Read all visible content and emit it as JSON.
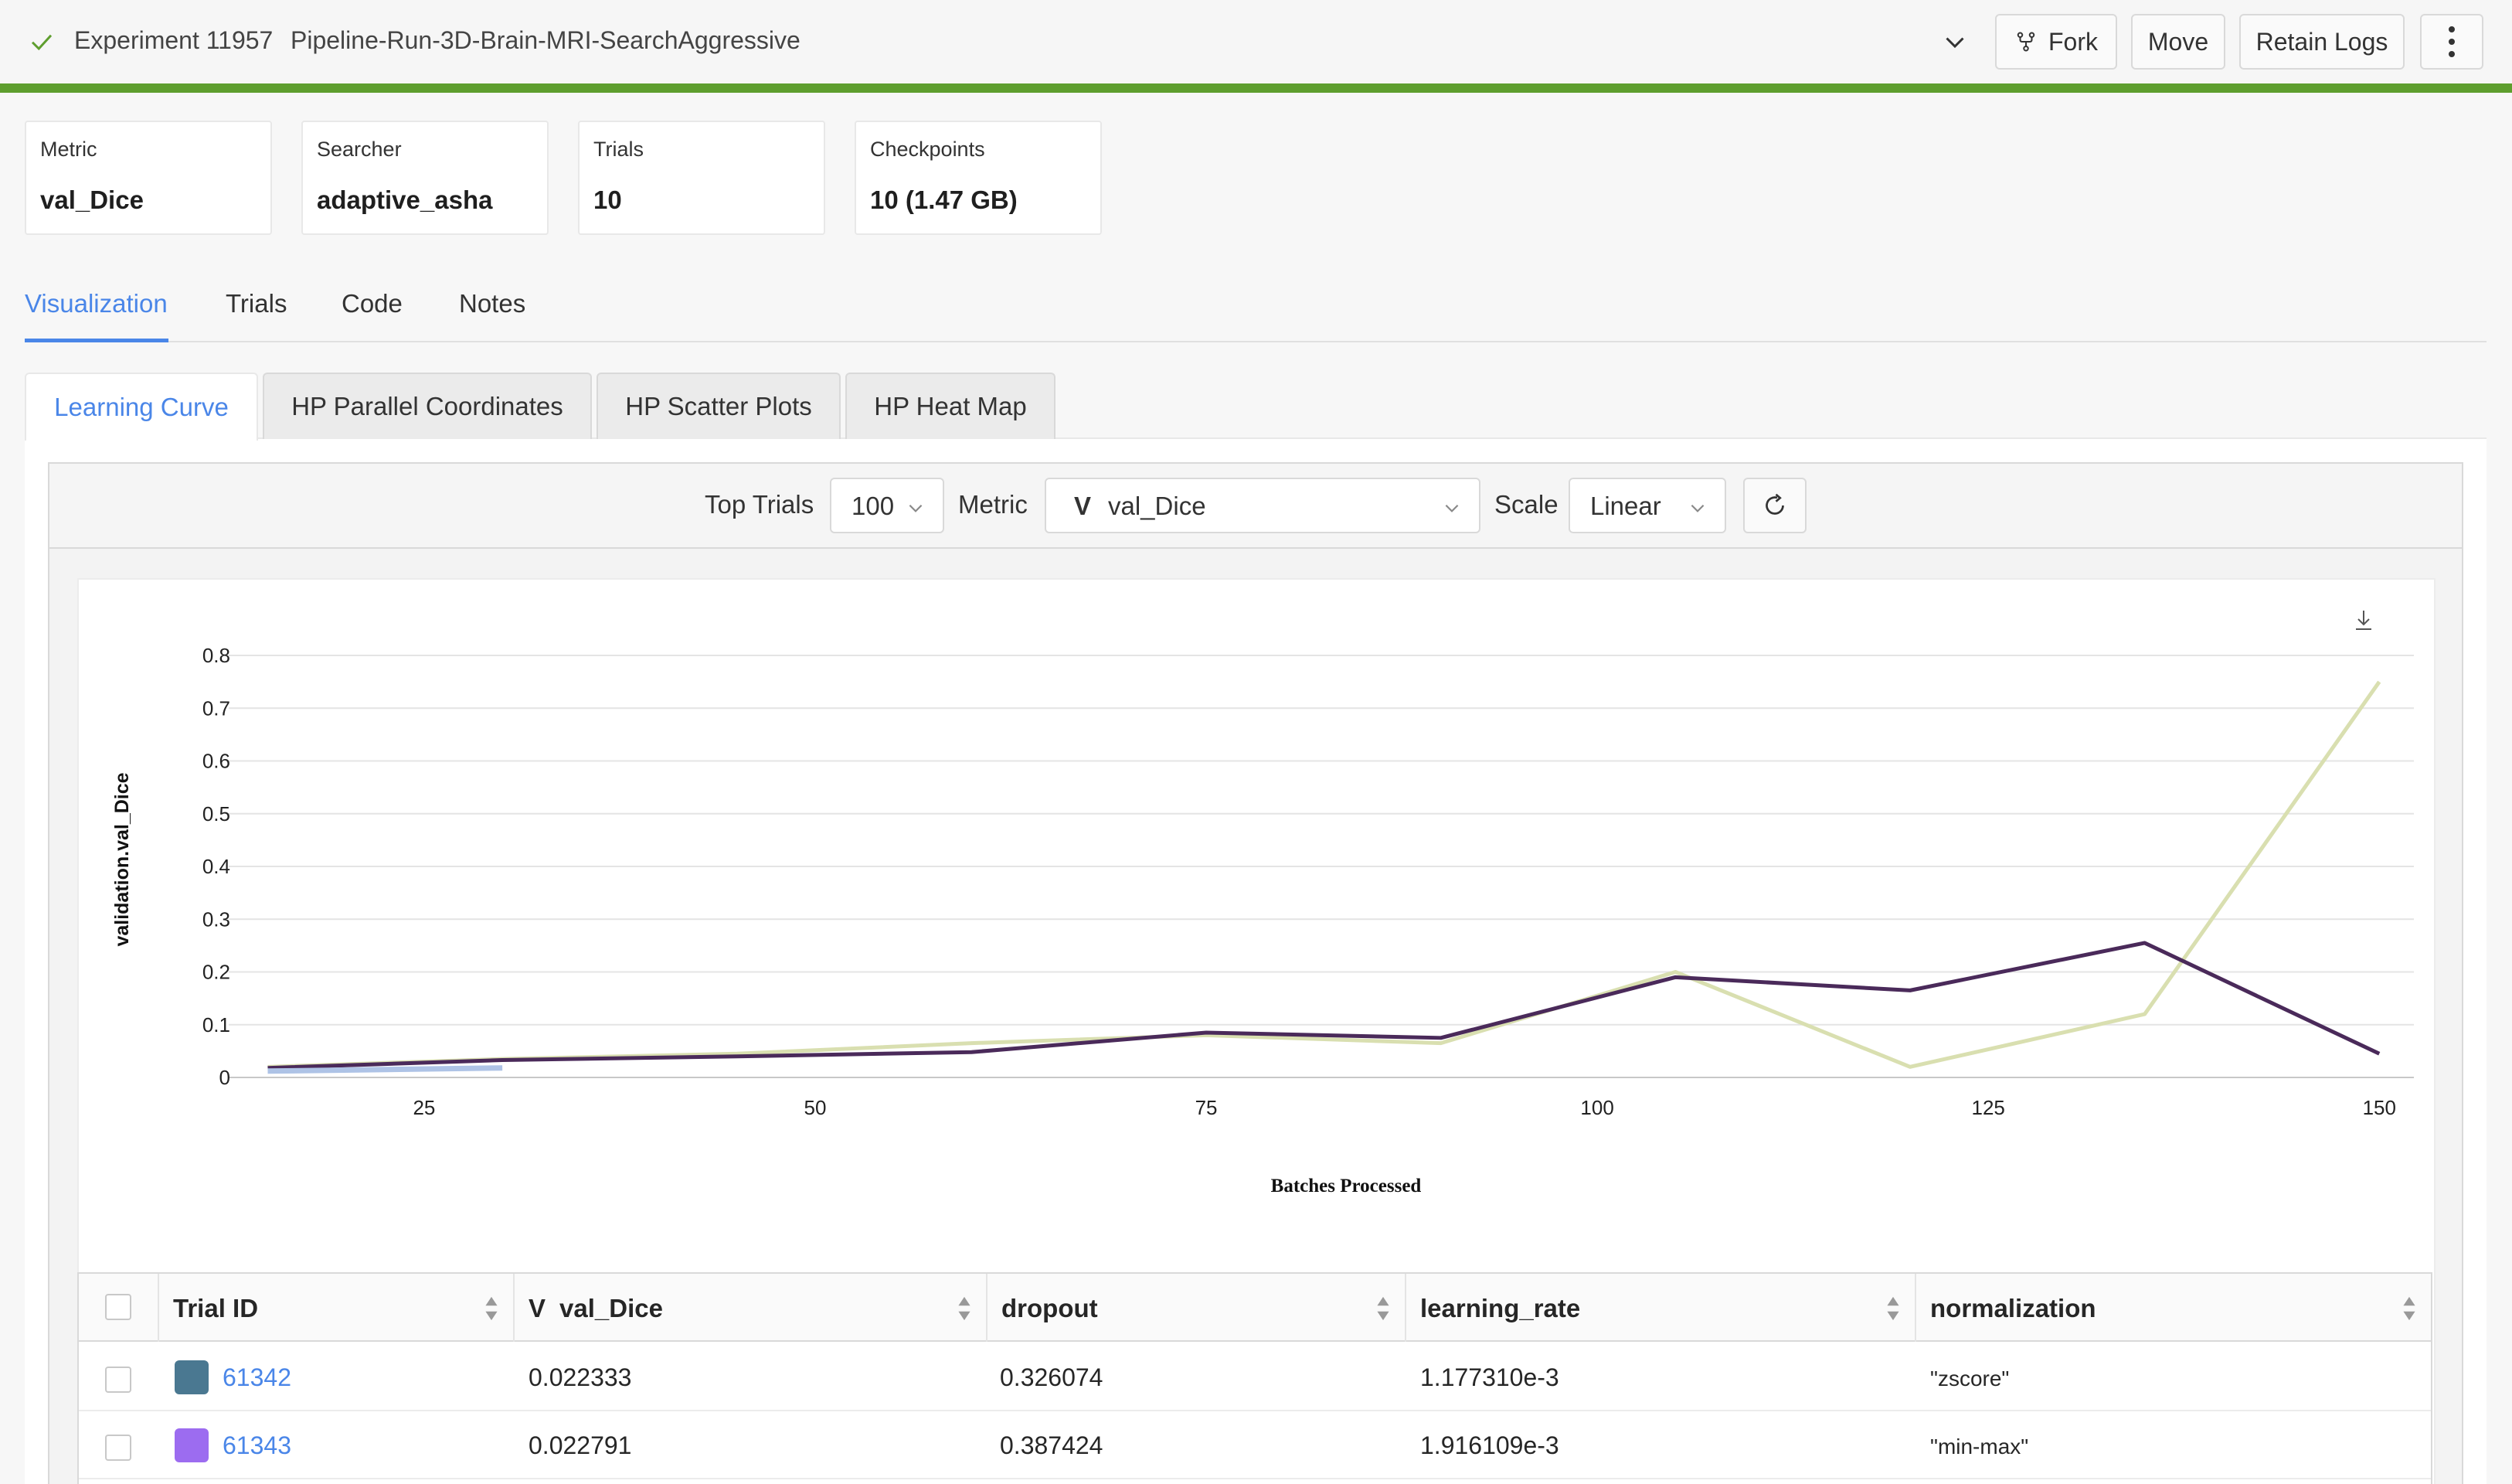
{
  "header": {
    "experiment_id": "Experiment 11957",
    "experiment_name": "Pipeline-Run-3D-Brain-MRI-SearchAggressive",
    "buttons": {
      "fork": "Fork",
      "move": "Move",
      "retain_logs": "Retain Logs"
    },
    "accent_color": "#5e9e2e"
  },
  "cards": [
    {
      "label": "Metric",
      "value": "val_Dice"
    },
    {
      "label": "Searcher",
      "value": "adaptive_asha"
    },
    {
      "label": "Trials",
      "value": "10"
    },
    {
      "label": "Checkpoints",
      "value": "10 (1.47 GB)"
    }
  ],
  "main_tabs": [
    {
      "label": "Visualization",
      "active": true
    },
    {
      "label": "Trials"
    },
    {
      "label": "Code"
    },
    {
      "label": "Notes"
    }
  ],
  "sub_tabs": [
    {
      "label": "Learning Curve",
      "active": true
    },
    {
      "label": "HP Parallel Coordinates"
    },
    {
      "label": "HP Scatter Plots"
    },
    {
      "label": "HP Heat Map"
    }
  ],
  "toolbar": {
    "top_trials_label": "Top Trials",
    "top_trials_value": "100",
    "metric_label": "Metric",
    "metric_badge": "V",
    "metric_value": "val_Dice",
    "scale_label": "Scale",
    "scale_value": "Linear"
  },
  "chart_data": {
    "type": "line",
    "xlabel": "Batches Processed",
    "ylabel": "validation.val_Dice",
    "xlim": [
      13,
      153
    ],
    "ylim": [
      0,
      0.8
    ],
    "x_ticks": [
      25,
      50,
      75,
      100,
      125,
      150
    ],
    "y_ticks": [
      0,
      0.1,
      0.2,
      0.3,
      0.4,
      0.5,
      0.6,
      0.7,
      0.8
    ],
    "y_tick_labels": [
      "0",
      "0.1",
      "0.2",
      "0.3",
      "0.4",
      "0.5",
      "0.6",
      "0.7",
      "0.8"
    ],
    "grid": true,
    "series": [
      {
        "color": "#d9dfb0",
        "x": [
          15,
          30,
          45,
          60,
          75,
          90,
          105,
          120,
          135,
          150
        ],
        "y": [
          0.02,
          0.035,
          0.045,
          0.065,
          0.08,
          0.065,
          0.2,
          0.02,
          0.12,
          0.75
        ]
      },
      {
        "color": "#4a2a5a",
        "x": [
          15,
          30,
          45,
          60,
          75,
          90,
          105,
          120,
          135,
          150
        ],
        "y": [
          0.018,
          0.033,
          0.04,
          0.048,
          0.085,
          0.075,
          0.19,
          0.165,
          0.255,
          0.045
        ]
      },
      {
        "color": "#aec3e6",
        "x": [
          15,
          30
        ],
        "y": [
          0.012,
          0.018
        ]
      }
    ]
  },
  "table": {
    "columns": [
      {
        "label": "Trial ID"
      },
      {
        "badge": "V",
        "label": "val_Dice"
      },
      {
        "label": "dropout"
      },
      {
        "label": "learning_rate"
      },
      {
        "label": "normalization"
      }
    ],
    "rows": [
      {
        "trial_id": "61342",
        "color": "#4a7891",
        "val_dice": "0.022333",
        "dropout": "0.326074",
        "learning_rate": "1.177310e-3",
        "normalization": "\"zscore\""
      },
      {
        "trial_id": "61343",
        "color": "#9c6cf0",
        "val_dice": "0.022791",
        "dropout": "0.387424",
        "learning_rate": "1.916109e-3",
        "normalization": "\"min-max\""
      }
    ]
  }
}
